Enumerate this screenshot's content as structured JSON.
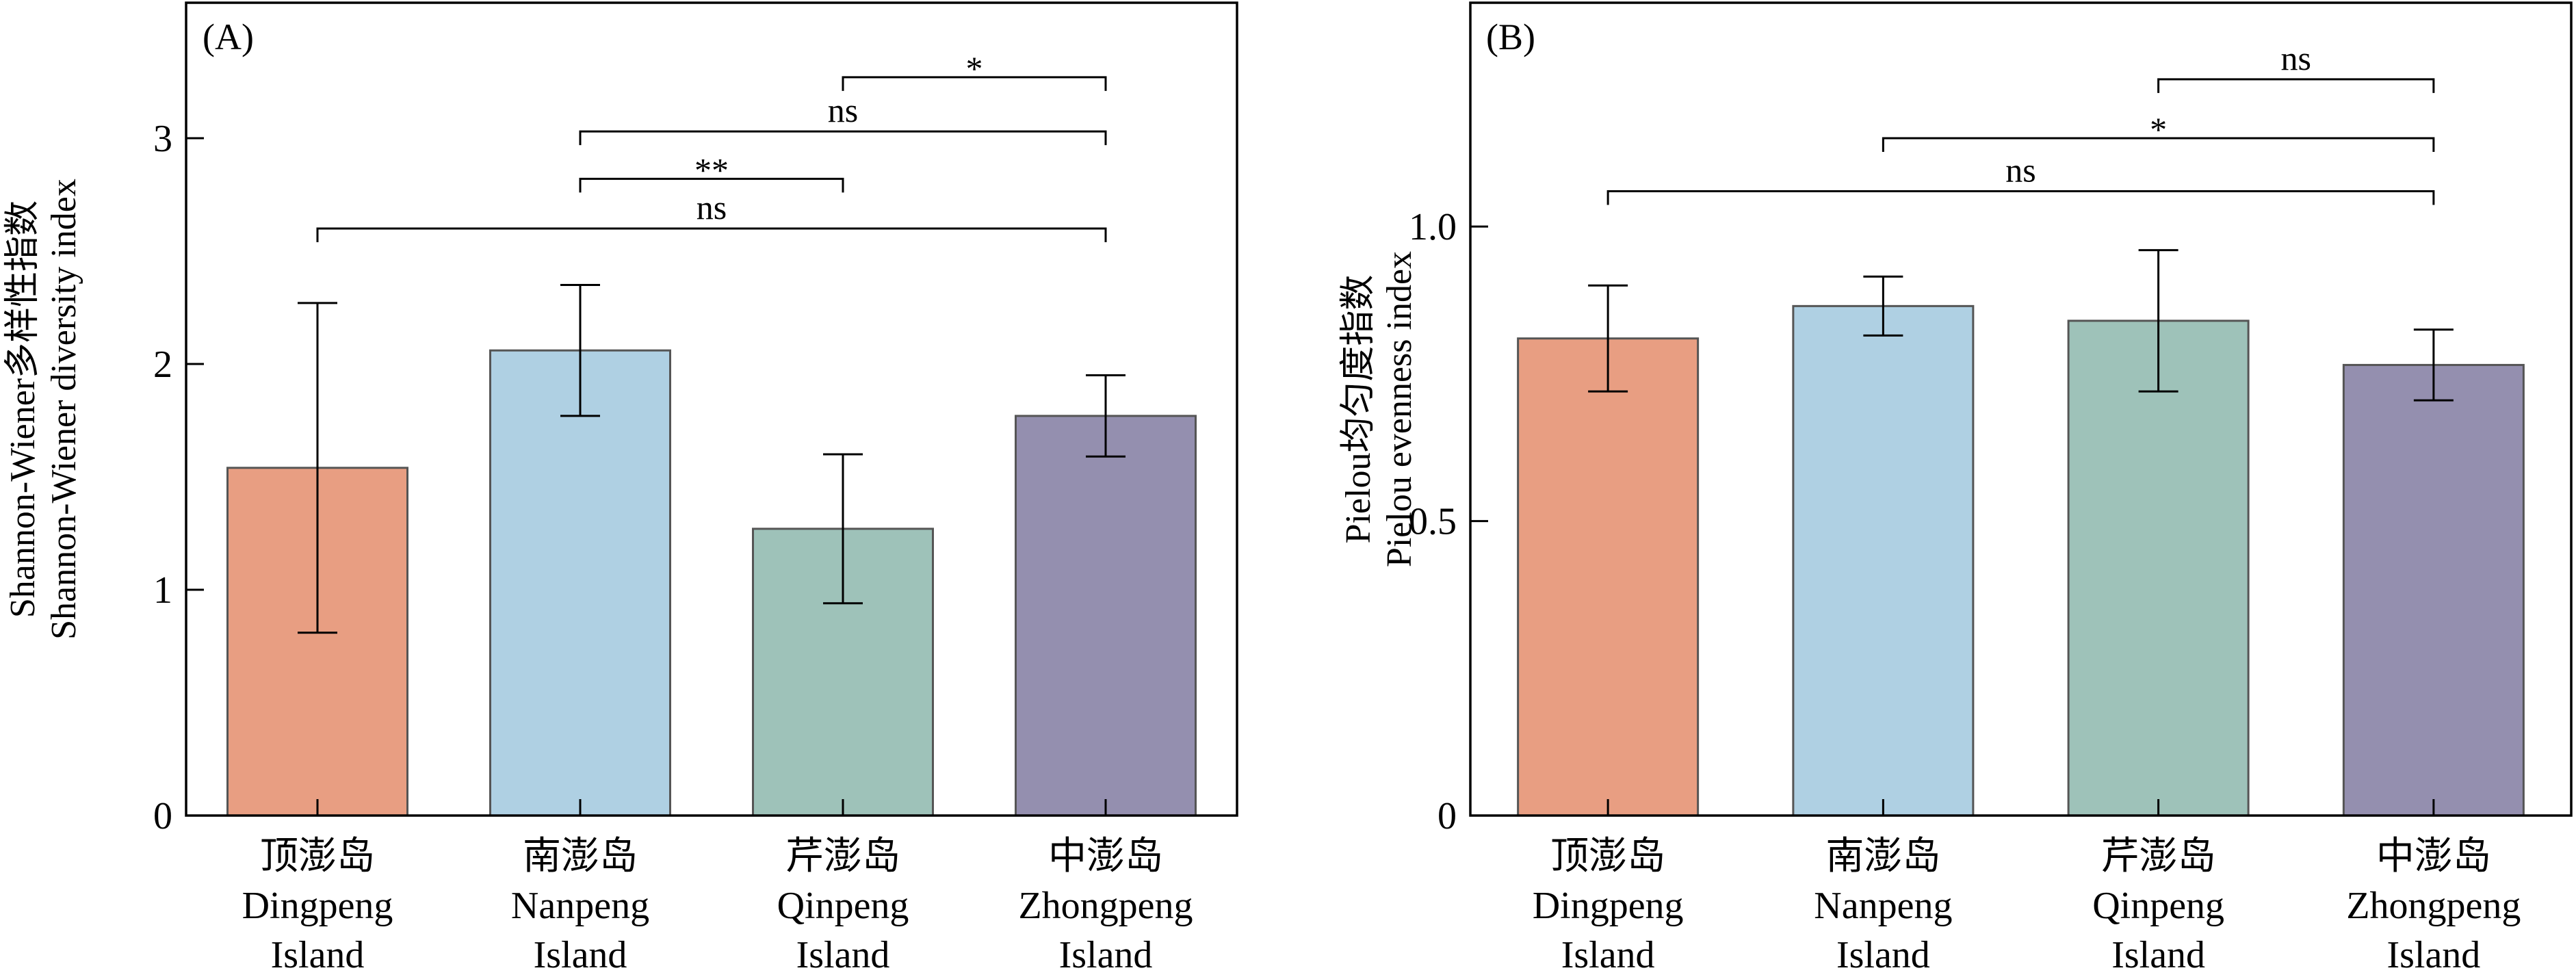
{
  "chart_data": [
    {
      "panel": "(A)",
      "type": "bar",
      "categories": [
        {
          "cn": "顶澎岛",
          "en1": "Dingpeng",
          "en2": "Island"
        },
        {
          "cn": "南澎岛",
          "en1": "Nanpeng",
          "en2": "Island"
        },
        {
          "cn": "芹澎岛",
          "en1": "Qinpeng",
          "en2": "Island"
        },
        {
          "cn": "中澎岛",
          "en1": "Zhongpeng",
          "en2": "Island"
        }
      ],
      "values": [
        1.54,
        2.06,
        1.27,
        1.77
      ],
      "errors": [
        0.73,
        0.29,
        0.33,
        0.18
      ],
      "ylabel_cn": "Shannon-Wiener多样性指数",
      "ylabel_en": "Shannon-Wiener diversity index",
      "ylim": [
        0,
        3.6
      ],
      "yticks": [
        0,
        1,
        2,
        3
      ],
      "ytick_labels": [
        "0",
        "1",
        "2",
        "3"
      ],
      "significance": [
        {
          "from": 0,
          "to": 3,
          "label": "ns",
          "y": 2.6
        },
        {
          "from": 1,
          "to": 2,
          "label": "**",
          "y": 2.82
        },
        {
          "from": 1,
          "to": 3,
          "label": "ns",
          "y": 3.03
        },
        {
          "from": 2,
          "to": 3,
          "label": "*",
          "y": 3.27
        }
      ]
    },
    {
      "panel": "(B)",
      "type": "bar",
      "categories": [
        {
          "cn": "顶澎岛",
          "en1": "Dingpeng",
          "en2": "Island"
        },
        {
          "cn": "南澎岛",
          "en1": "Nanpeng",
          "en2": "Island"
        },
        {
          "cn": "芹澎岛",
          "en1": "Qinpeng",
          "en2": "Island"
        },
        {
          "cn": "中澎岛",
          "en1": "Zhongpeng",
          "en2": "Island"
        }
      ],
      "values": [
        0.81,
        0.865,
        0.84,
        0.765
      ],
      "errors": [
        0.09,
        0.05,
        0.12,
        0.06
      ],
      "ylabel_cn": "Pielou均匀度指数",
      "ylabel_en": "Pielou evenness index",
      "ylim": [
        0,
        1.38
      ],
      "yticks": [
        0,
        0.5,
        1.0
      ],
      "ytick_labels": [
        "0",
        "0.5",
        "1.0"
      ],
      "significance": [
        {
          "from": 0,
          "to": 3,
          "label": "ns",
          "y": 1.06
        },
        {
          "from": 1,
          "to": 3,
          "label": "*",
          "y": 1.15
        },
        {
          "from": 2,
          "to": 3,
          "label": "ns",
          "y": 1.25
        }
      ]
    }
  ],
  "colors": {
    "bars": [
      "#E89E82",
      "#AFD0E3",
      "#9EC2B9",
      "#948FAF"
    ]
  }
}
